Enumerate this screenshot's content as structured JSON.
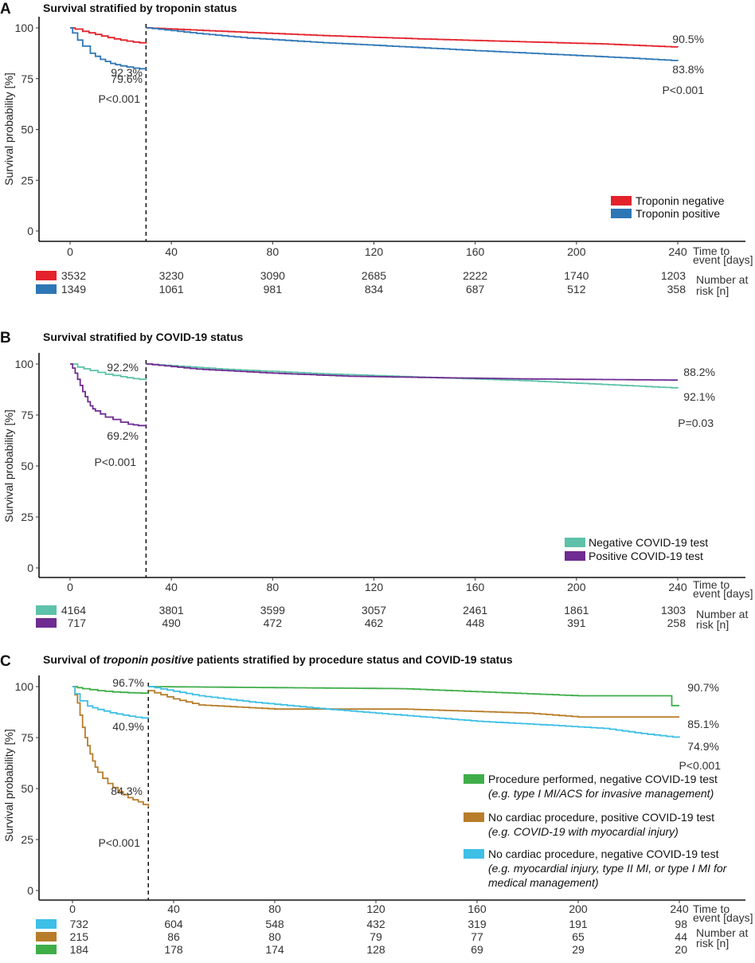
{
  "chart_data": [
    {
      "type": "line",
      "subtype": "kaplan-meier",
      "letter": "A",
      "title": "Survival stratified by troponin status",
      "ylabel": "Survival probability [%]",
      "xlabel_lines": [
        "Time to",
        "event [days]"
      ],
      "ylim": [
        0,
        100
      ],
      "xlim": [
        0,
        240
      ],
      "yticks": [
        0,
        25,
        50,
        75,
        100
      ],
      "xticks": [
        0,
        40,
        80,
        120,
        160,
        200,
        240
      ],
      "landmark_day": 30,
      "series": [
        {
          "name": "Troponin negative",
          "color": "#e3222b",
          "early": [
            [
              0,
              100
            ],
            [
              2,
              99.4
            ],
            [
              5,
              98.3
            ],
            [
              10,
              96.8
            ],
            [
              15,
              95.2
            ],
            [
              20,
              94
            ],
            [
              25,
              93
            ],
            [
              30,
              92.3
            ]
          ],
          "late": [
            [
              30,
              100
            ],
            [
              60,
              98.3
            ],
            [
              100,
              96.2
            ],
            [
              140,
              94.5
            ],
            [
              180,
              93.1
            ],
            [
              210,
              92.1
            ],
            [
              240,
              90.5
            ]
          ],
          "end_labels": [
            "92.3%",
            "90.5%"
          ]
        },
        {
          "name": "Troponin positive",
          "color": "#2e76b6",
          "early": [
            [
              0,
              100
            ],
            [
              1,
              97.5
            ],
            [
              3,
              94
            ],
            [
              5,
              91
            ],
            [
              8,
              87.5
            ],
            [
              12,
              84.5
            ],
            [
              16,
              82.5
            ],
            [
              20,
              81.3
            ],
            [
              25,
              80.2
            ],
            [
              30,
              79.6
            ]
          ],
          "late": [
            [
              30,
              100
            ],
            [
              50,
              97.3
            ],
            [
              70,
              95
            ],
            [
              100,
              92.7
            ],
            [
              130,
              90.8
            ],
            [
              160,
              88.8
            ],
            [
              190,
              87
            ],
            [
              220,
              85.2
            ],
            [
              240,
              83.8
            ]
          ],
          "end_labels": [
            "79.6%",
            "83.8%"
          ]
        }
      ],
      "pvalues": [
        "P<0.001",
        "P<0.001"
      ],
      "risk_table": {
        "label_lines": [
          "Number at",
          "risk [n]"
        ],
        "rows": [
          {
            "color": "#e3222b",
            "values": [
              "3532",
              "3230",
              "3090",
              "2685",
              "2222",
              "1740",
              "1203"
            ]
          },
          {
            "color": "#2e76b6",
            "values": [
              "1349",
              "1061",
              "981",
              "834",
              "687",
              "512",
              "358"
            ]
          }
        ]
      }
    },
    {
      "type": "line",
      "subtype": "kaplan-meier",
      "letter": "B",
      "title": "Survival stratified by COVID-19 status",
      "ylabel": "Survival probability [%]",
      "xlabel_lines": [
        "Time to",
        "event [days]"
      ],
      "ylim": [
        0,
        100
      ],
      "xlim": [
        0,
        240
      ],
      "yticks": [
        0,
        25,
        50,
        75,
        100
      ],
      "xticks": [
        0,
        40,
        80,
        120,
        160,
        200,
        240
      ],
      "landmark_day": 30,
      "series": [
        {
          "name": "Negative COVID-19 test",
          "color": "#5dc2a9",
          "early": [
            [
              0,
              100
            ],
            [
              3,
              98.5
            ],
            [
              8,
              96.8
            ],
            [
              14,
              95
            ],
            [
              20,
              93.8
            ],
            [
              25,
              92.8
            ],
            [
              30,
              92.2
            ]
          ],
          "late": [
            [
              30,
              100
            ],
            [
              60,
              97.5
            ],
            [
              100,
              95.2
            ],
            [
              140,
              93.5
            ],
            [
              180,
              91.8
            ],
            [
              210,
              90
            ],
            [
              240,
              88.2
            ]
          ],
          "end_labels": [
            "92.2%",
            "88.2%"
          ]
        },
        {
          "name": "Positive COVID-19 test",
          "color": "#6f2c91",
          "early": [
            [
              0,
              100
            ],
            [
              1,
              98
            ],
            [
              2,
              95.5
            ],
            [
              3,
              92.5
            ],
            [
              4,
              89.5
            ],
            [
              5,
              86.5
            ],
            [
              6,
              84
            ],
            [
              7,
              81.5
            ],
            [
              8,
              79.5
            ],
            [
              9,
              78
            ],
            [
              10,
              77
            ],
            [
              12,
              75.5
            ],
            [
              14,
              74
            ],
            [
              17,
              72.8
            ],
            [
              20,
              71.5
            ],
            [
              23,
              70.5
            ],
            [
              27,
              69.8
            ],
            [
              30,
              69.2
            ]
          ],
          "late": [
            [
              30,
              100
            ],
            [
              50,
              97.5
            ],
            [
              80,
              95.5
            ],
            [
              110,
              94
            ],
            [
              150,
              93.2
            ],
            [
              180,
              92.7
            ],
            [
              240,
              92.1
            ]
          ],
          "end_labels": [
            "69.2%",
            "92.1%"
          ]
        }
      ],
      "pvalues": [
        "P<0.001",
        "P=0.03"
      ],
      "risk_table": {
        "label_lines": [
          "Number at",
          "risk [n]"
        ],
        "rows": [
          {
            "color": "#5dc2a9",
            "values": [
              "4164",
              "3801",
              "3599",
              "3057",
              "2461",
              "1861",
              "1303"
            ]
          },
          {
            "color": "#6f2c91",
            "values": [
              "717",
              "490",
              "472",
              "462",
              "448",
              "391",
              "258"
            ]
          }
        ]
      }
    },
    {
      "type": "line",
      "subtype": "kaplan-meier",
      "letter": "C",
      "title_parts": [
        "Survival of ",
        "troponin positive",
        " patients stratified by procedure status and COVID-19 status"
      ],
      "ylabel": "Survival probability [%]",
      "xlabel_lines": [
        "Time to",
        "event [days]"
      ],
      "ylim": [
        0,
        100
      ],
      "xlim": [
        0,
        240
      ],
      "yticks": [
        0,
        25,
        50,
        75,
        100
      ],
      "xticks": [
        0,
        40,
        80,
        120,
        160,
        200,
        240
      ],
      "landmark_day": 30,
      "series": [
        {
          "name": "Procedure performed, negative COVID-19 test",
          "desc": "(e.g. type I MI/ACS for invasive management)",
          "color": "#3fae49",
          "early": [
            [
              0,
              100
            ],
            [
              4,
              99
            ],
            [
              10,
              98
            ],
            [
              16,
              97.4
            ],
            [
              22,
              97
            ],
            [
              30,
              96.7
            ]
          ],
          "late": [
            [
              30,
              100
            ],
            [
              130,
              99
            ],
            [
              200,
              95.5
            ],
            [
              237,
              95.5
            ],
            [
              237,
              90.7
            ],
            [
              240,
              90.7
            ]
          ],
          "end_labels": [
            "96.7%",
            "90.7%"
          ]
        },
        {
          "name": "No cardiac procedure, positive COVID-19 test",
          "desc": "(e.g. COVID-19 with myocardial injury)",
          "color": "#b87d2a",
          "early": [
            [
              0,
              100
            ],
            [
              1,
              96
            ],
            [
              2,
              92
            ],
            [
              3,
              86
            ],
            [
              4,
              80
            ],
            [
              5,
              75
            ],
            [
              6,
              71
            ],
            [
              7,
              67
            ],
            [
              8,
              63.5
            ],
            [
              9,
              60.5
            ],
            [
              10,
              58
            ],
            [
              12,
              55
            ],
            [
              14,
              52.5
            ],
            [
              16,
              50.5
            ],
            [
              18,
              48.5
            ],
            [
              20,
              47
            ],
            [
              22,
              45.5
            ],
            [
              24,
              44.5
            ],
            [
              26,
              43.5
            ],
            [
              28,
              42.2
            ],
            [
              30,
              40.9
            ]
          ],
          "late": [
            [
              30,
              98
            ],
            [
              40,
              94
            ],
            [
              50,
              91
            ],
            [
              80,
              89
            ],
            [
              130,
              89
            ],
            [
              180,
              87
            ],
            [
              200,
              85.1
            ],
            [
              240,
              85.1
            ]
          ],
          "end_labels": [
            "40.9%",
            "85.1%"
          ]
        },
        {
          "name": "No cardiac procedure, negative COVID-19 test",
          "desc_lines": [
            "(e.g. myocardial injury, type II MI, or type I MI for",
            "medical management)"
          ],
          "color": "#3dbfe6",
          "early": [
            [
              0,
              100
            ],
            [
              1,
              96.5
            ],
            [
              3,
              93
            ],
            [
              6,
              90.5
            ],
            [
              10,
              88.8
            ],
            [
              15,
              87.2
            ],
            [
              20,
              86
            ],
            [
              25,
              85
            ],
            [
              30,
              84.3
            ]
          ],
          "late": [
            [
              30,
              100
            ],
            [
              50,
              95.5
            ],
            [
              70,
              92.5
            ],
            [
              100,
              89
            ],
            [
              130,
              86
            ],
            [
              160,
              83
            ],
            [
              190,
              81
            ],
            [
              210,
              79.5
            ],
            [
              225,
              77
            ],
            [
              240,
              74.9
            ]
          ],
          "end_labels": [
            "84.3%",
            "74.9%"
          ]
        }
      ],
      "pvalues": [
        "P<0.001",
        "P<0.001"
      ],
      "risk_table": {
        "label_lines": [
          "Number at",
          "risk [n]"
        ],
        "rows": [
          {
            "color": "#3dbfe6",
            "values": [
              "732",
              "604",
              "548",
              "432",
              "319",
              "191",
              "98"
            ]
          },
          {
            "color": "#b87d2a",
            "values": [
              "215",
              "86",
              "80",
              "79",
              "77",
              "65",
              "44"
            ]
          },
          {
            "color": "#3fae49",
            "values": [
              "184",
              "178",
              "174",
              "128",
              "69",
              "29",
              "20"
            ]
          }
        ]
      }
    }
  ]
}
